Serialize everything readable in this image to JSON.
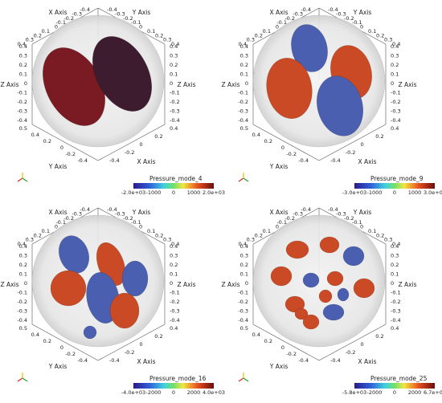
{
  "axes": {
    "x_top": {
      "label": "X Axis",
      "ticks": [
        "0.4",
        "0.3",
        "0.2",
        "0.1",
        "0",
        "-0.1",
        "-0.2",
        "-0.3",
        "-0.4"
      ]
    },
    "y_top": {
      "label": "Y Axis",
      "ticks": [
        "-0.4",
        "-0.3",
        "-0.2",
        "-0.1",
        "0",
        "0.1",
        "0.2",
        "0.3",
        "0.4"
      ]
    },
    "z_left": {
      "label": "Z Axis",
      "ticks": [
        "0.4",
        "0.3",
        "0.2",
        "0.1",
        "0",
        "-0.1",
        "-0.2",
        "-0.3",
        "-0.4"
      ]
    },
    "z_right": {
      "label": "Z Axis",
      "ticks": [
        "0.4",
        "0.3",
        "0.2",
        "0.1",
        "0",
        "-0.1",
        "-0.2",
        "-0.3",
        "-0.4"
      ]
    },
    "y_bottom": {
      "label": "Y Axis",
      "ticks": [
        "0.5",
        "0.4",
        "0.2",
        "0",
        "-0.2",
        "-0.4"
      ]
    },
    "x_bottom": {
      "label": "X Axis",
      "ticks": [
        "-0.4",
        "-0.2",
        "0",
        "0.2",
        "0.4"
      ]
    }
  },
  "panels": [
    {
      "colorbar": {
        "title": "Pressure_mode_4",
        "ticks": [
          "-2.0e+03",
          "-1000",
          "0",
          "1000",
          "2.0e+03"
        ]
      }
    },
    {
      "colorbar": {
        "title": "Pressure_mode_9",
        "ticks": [
          "-3.0e+03",
          "-1000",
          "0",
          "1000",
          "3.0e+03"
        ]
      }
    },
    {
      "colorbar": {
        "title": "Pressure_mode_16",
        "ticks": [
          "-4.0e+03",
          "-2000",
          "0",
          "2000",
          "4.0e+03"
        ]
      }
    },
    {
      "colorbar": {
        "title": "Pressure_mode_25",
        "ticks": [
          "-5.8e+03",
          "-2000",
          "0",
          "2000",
          "6.7e+03"
        ]
      }
    }
  ]
}
